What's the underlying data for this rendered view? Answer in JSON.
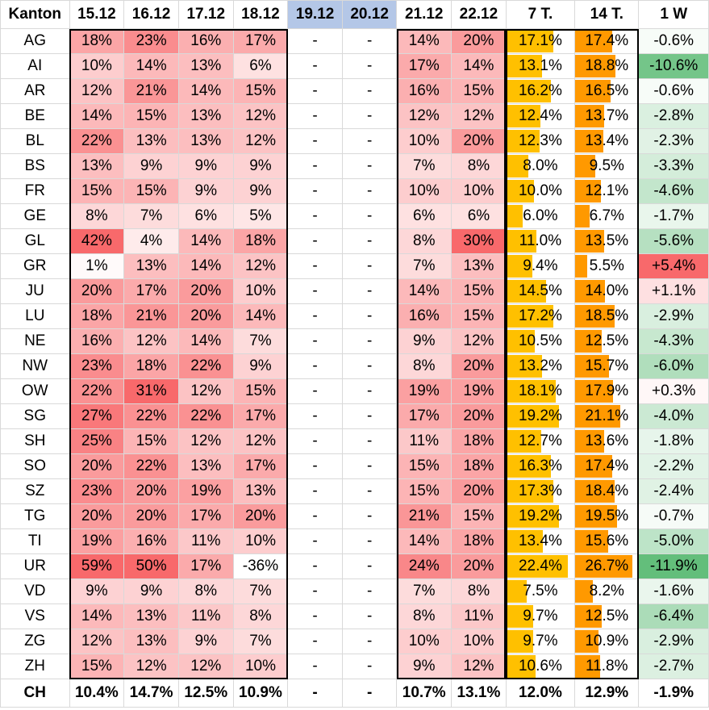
{
  "header": {
    "kanton": "Kanton",
    "days": [
      "15.12",
      "16.12",
      "17.12",
      "18.12",
      "19.12",
      "20.12",
      "21.12",
      "22.12"
    ],
    "avg7": "7 T.",
    "avg14": "14 T.",
    "week": "1 W"
  },
  "colors": {
    "heat_max": "#f8696b",
    "heat_min": "#ffffff",
    "bar7": "#ffc000",
    "bar14": "#ff9900",
    "weekend_header": "#b4c7e7",
    "week_neg": "#63be7b",
    "week_pos": "#f8696b"
  },
  "rows": [
    {
      "kanton": "AG",
      "days": [
        "18%",
        "23%",
        "16%",
        "17%",
        "-",
        "-",
        "14%",
        "20%"
      ],
      "avg7": "17.1%",
      "avg14": "17.4%",
      "week": "-0.6%"
    },
    {
      "kanton": "AI",
      "days": [
        "10%",
        "14%",
        "13%",
        "6%",
        "-",
        "-",
        "17%",
        "14%"
      ],
      "avg7": "13.1%",
      "avg14": "18.8%",
      "week": "-10.6%"
    },
    {
      "kanton": "AR",
      "days": [
        "12%",
        "21%",
        "14%",
        "15%",
        "-",
        "-",
        "16%",
        "15%"
      ],
      "avg7": "16.2%",
      "avg14": "16.5%",
      "week": "-0.6%"
    },
    {
      "kanton": "BE",
      "days": [
        "14%",
        "15%",
        "13%",
        "12%",
        "-",
        "-",
        "12%",
        "12%"
      ],
      "avg7": "12.4%",
      "avg14": "13.7%",
      "week": "-2.8%"
    },
    {
      "kanton": "BL",
      "days": [
        "22%",
        "13%",
        "13%",
        "12%",
        "-",
        "-",
        "10%",
        "20%"
      ],
      "avg7": "12.3%",
      "avg14": "13.4%",
      "week": "-2.3%"
    },
    {
      "kanton": "BS",
      "days": [
        "13%",
        "9%",
        "9%",
        "9%",
        "-",
        "-",
        "7%",
        "8%"
      ],
      "avg7": "8.0%",
      "avg14": "9.5%",
      "week": "-3.3%"
    },
    {
      "kanton": "FR",
      "days": [
        "15%",
        "15%",
        "9%",
        "9%",
        "-",
        "-",
        "10%",
        "10%"
      ],
      "avg7": "10.0%",
      "avg14": "12.1%",
      "week": "-4.6%"
    },
    {
      "kanton": "GE",
      "days": [
        "8%",
        "7%",
        "6%",
        "5%",
        "-",
        "-",
        "6%",
        "6%"
      ],
      "avg7": "6.0%",
      "avg14": "6.7%",
      "week": "-1.7%"
    },
    {
      "kanton": "GL",
      "days": [
        "42%",
        "4%",
        "14%",
        "18%",
        "-",
        "-",
        "8%",
        "30%"
      ],
      "avg7": "11.0%",
      "avg14": "13.5%",
      "week": "-5.6%"
    },
    {
      "kanton": "GR",
      "days": [
        "1%",
        "13%",
        "14%",
        "12%",
        "-",
        "-",
        "7%",
        "13%"
      ],
      "avg7": "9.4%",
      "avg14": "5.5%",
      "week": "+5.4%"
    },
    {
      "kanton": "JU",
      "days": [
        "20%",
        "17%",
        "20%",
        "10%",
        "-",
        "-",
        "14%",
        "15%"
      ],
      "avg7": "14.5%",
      "avg14": "14.0%",
      "week": "+1.1%"
    },
    {
      "kanton": "LU",
      "days": [
        "18%",
        "21%",
        "20%",
        "14%",
        "-",
        "-",
        "16%",
        "15%"
      ],
      "avg7": "17.2%",
      "avg14": "18.5%",
      "week": "-2.9%"
    },
    {
      "kanton": "NE",
      "days": [
        "16%",
        "12%",
        "14%",
        "7%",
        "-",
        "-",
        "9%",
        "12%"
      ],
      "avg7": "10.5%",
      "avg14": "12.5%",
      "week": "-4.3%"
    },
    {
      "kanton": "NW",
      "days": [
        "23%",
        "18%",
        "22%",
        "9%",
        "-",
        "-",
        "8%",
        "20%"
      ],
      "avg7": "13.2%",
      "avg14": "15.7%",
      "week": "-6.0%"
    },
    {
      "kanton": "OW",
      "days": [
        "22%",
        "31%",
        "12%",
        "15%",
        "-",
        "-",
        "19%",
        "19%"
      ],
      "avg7": "18.1%",
      "avg14": "17.9%",
      "week": "+0.3%"
    },
    {
      "kanton": "SG",
      "days": [
        "27%",
        "22%",
        "22%",
        "17%",
        "-",
        "-",
        "17%",
        "20%"
      ],
      "avg7": "19.2%",
      "avg14": "21.1%",
      "week": "-4.0%"
    },
    {
      "kanton": "SH",
      "days": [
        "25%",
        "15%",
        "12%",
        "12%",
        "-",
        "-",
        "11%",
        "18%"
      ],
      "avg7": "12.7%",
      "avg14": "13.6%",
      "week": "-1.8%"
    },
    {
      "kanton": "SO",
      "days": [
        "20%",
        "22%",
        "13%",
        "17%",
        "-",
        "-",
        "15%",
        "18%"
      ],
      "avg7": "16.3%",
      "avg14": "17.4%",
      "week": "-2.2%"
    },
    {
      "kanton": "SZ",
      "days": [
        "23%",
        "20%",
        "19%",
        "13%",
        "-",
        "-",
        "15%",
        "20%"
      ],
      "avg7": "17.3%",
      "avg14": "18.4%",
      "week": "-2.4%"
    },
    {
      "kanton": "TG",
      "days": [
        "20%",
        "20%",
        "17%",
        "20%",
        "-",
        "-",
        "21%",
        "15%"
      ],
      "avg7": "19.2%",
      "avg14": "19.5%",
      "week": "-0.7%"
    },
    {
      "kanton": "TI",
      "days": [
        "19%",
        "16%",
        "11%",
        "10%",
        "-",
        "-",
        "14%",
        "18%"
      ],
      "avg7": "13.4%",
      "avg14": "15.6%",
      "week": "-5.0%"
    },
    {
      "kanton": "UR",
      "days": [
        "59%",
        "50%",
        "17%",
        "-36%",
        "-",
        "-",
        "24%",
        "20%"
      ],
      "avg7": "22.4%",
      "avg14": "26.7%",
      "week": "-11.9%"
    },
    {
      "kanton": "VD",
      "days": [
        "9%",
        "9%",
        "8%",
        "7%",
        "-",
        "-",
        "7%",
        "8%"
      ],
      "avg7": "7.5%",
      "avg14": "8.2%",
      "week": "-1.6%"
    },
    {
      "kanton": "VS",
      "days": [
        "14%",
        "13%",
        "11%",
        "8%",
        "-",
        "-",
        "8%",
        "11%"
      ],
      "avg7": "9.7%",
      "avg14": "12.5%",
      "week": "-6.4%"
    },
    {
      "kanton": "ZG",
      "days": [
        "12%",
        "13%",
        "9%",
        "7%",
        "-",
        "-",
        "10%",
        "10%"
      ],
      "avg7": "9.7%",
      "avg14": "10.9%",
      "week": "-2.9%"
    },
    {
      "kanton": "ZH",
      "days": [
        "15%",
        "12%",
        "12%",
        "10%",
        "-",
        "-",
        "9%",
        "12%"
      ],
      "avg7": "10.6%",
      "avg14": "11.8%",
      "week": "-2.7%"
    }
  ],
  "total": {
    "kanton": "CH",
    "days": [
      "10.4%",
      "14.7%",
      "12.5%",
      "10.9%",
      "-",
      "-",
      "10.7%",
      "13.1%"
    ],
    "avg7": "12.0%",
    "avg14": "12.9%",
    "week": "-1.9%"
  }
}
